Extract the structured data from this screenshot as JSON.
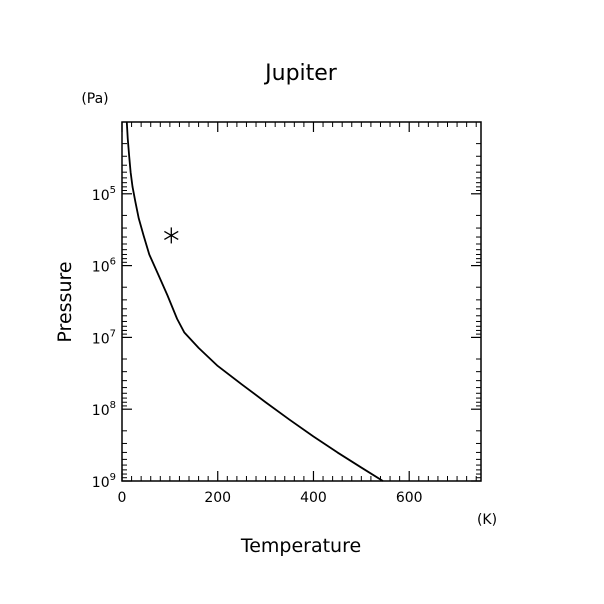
{
  "chart_data": {
    "type": "line",
    "title": "Jupiter",
    "xlabel": "Temperature",
    "ylabel": "Pressure",
    "x_unit": "(K)",
    "y_unit": "(Pa)",
    "xlim": [
      0,
      750
    ],
    "ylim": [
      1000000000,
      10000
    ],
    "y_scale": "log",
    "y_inverted": true,
    "x_ticks": [
      0,
      200,
      400,
      600
    ],
    "x_tick_labels": [
      "0",
      "200",
      "400",
      "600"
    ],
    "y_ticks": [
      100000,
      1000000,
      10000000,
      100000000,
      1000000000
    ],
    "y_tick_labels": [
      {
        "base": "10",
        "exp": "5"
      },
      {
        "base": "10",
        "exp": "6"
      },
      {
        "base": "10",
        "exp": "7"
      },
      {
        "base": "10",
        "exp": "8"
      },
      {
        "base": "10",
        "exp": "9"
      }
    ],
    "grid": false,
    "series": [
      {
        "points": [
          [
            10,
            10000
          ],
          [
            12,
            17000
          ],
          [
            15,
            30000
          ],
          [
            18,
            50000
          ],
          [
            22,
            80000
          ],
          [
            28,
            130000
          ],
          [
            35,
            220000
          ],
          [
            45,
            380000
          ],
          [
            57,
            700000
          ],
          [
            75,
            1300000
          ],
          [
            95,
            2600000
          ],
          [
            115,
            5500000
          ],
          [
            130,
            8500000
          ],
          [
            160,
            14000000
          ],
          [
            200,
            25000000
          ],
          [
            250,
            45000000
          ],
          [
            300,
            80000000
          ],
          [
            350,
            140000000
          ],
          [
            400,
            240000000
          ],
          [
            450,
            400000000
          ],
          [
            500,
            650000000
          ],
          [
            545,
            1000000000
          ]
        ],
        "color": "#000000"
      }
    ],
    "markers": [
      {
        "x": 103,
        "y": 380000,
        "symbol": "asterisk"
      }
    ]
  }
}
